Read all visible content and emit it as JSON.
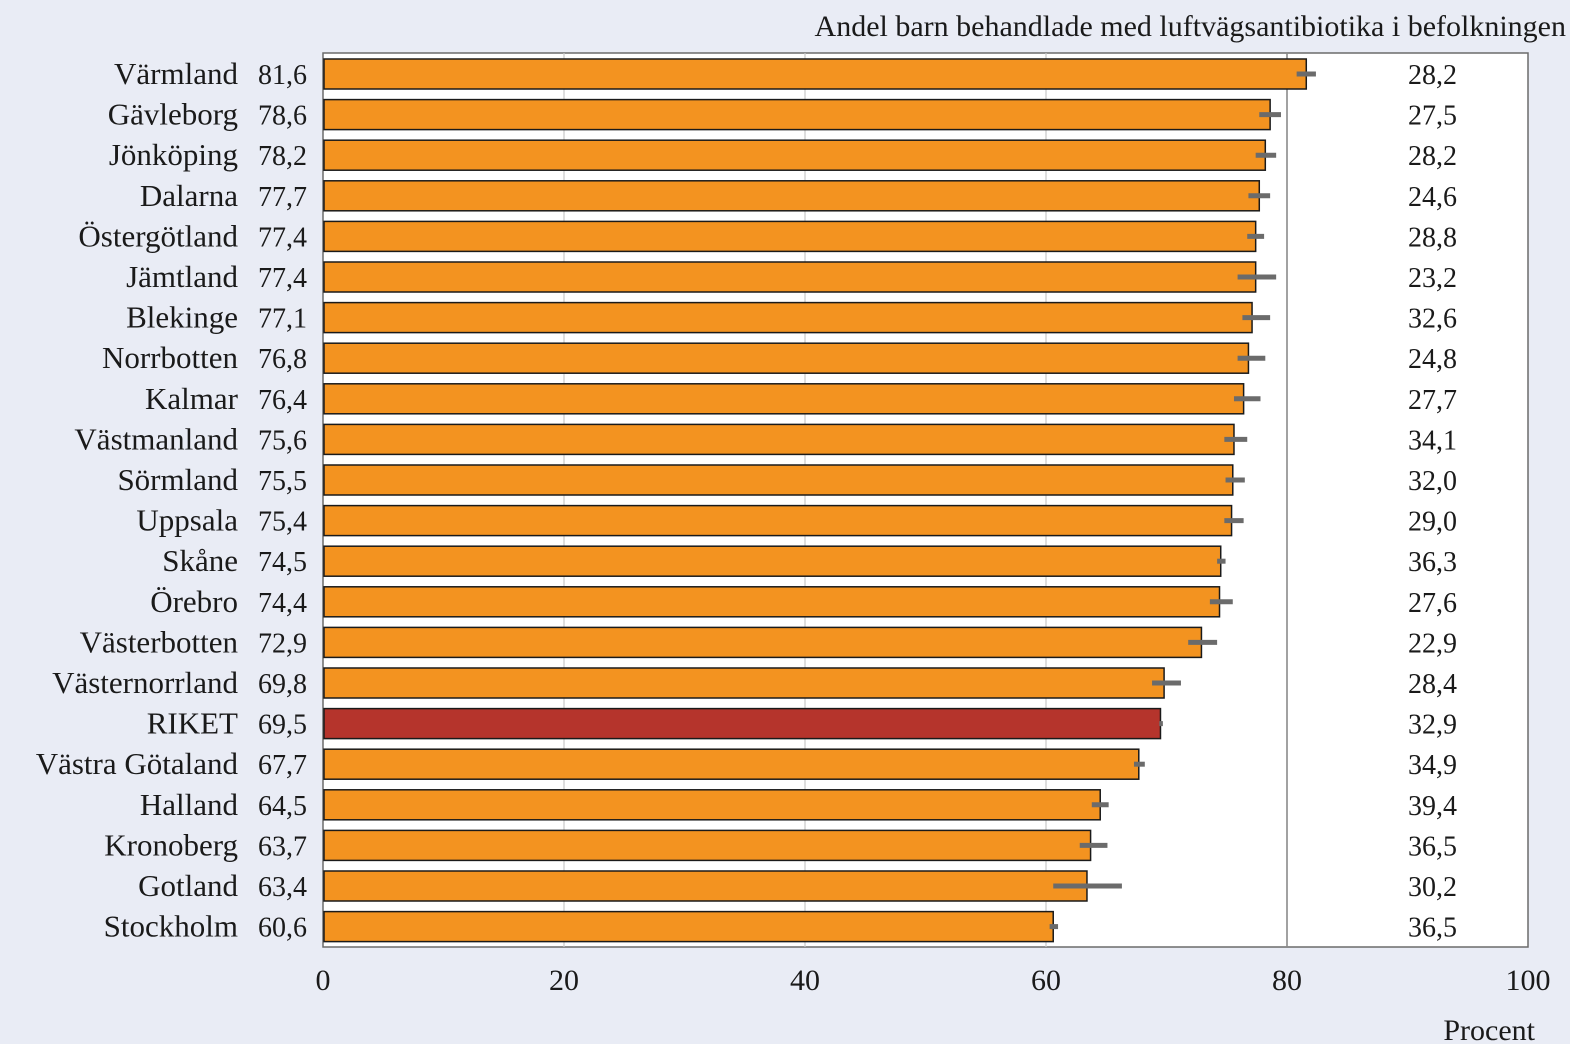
{
  "chart_data": {
    "type": "bar",
    "orientation": "horizontal",
    "title": "Andel barn behandlade med luftvägsantibiotika i befolkningen",
    "xlabel": "Procent",
    "xlim": [
      0,
      100
    ],
    "xticks": [
      0,
      20,
      40,
      60,
      80,
      100
    ],
    "reference_line": 80,
    "grid": true,
    "colors": {
      "bar": "#f39320",
      "highlight": "#b5342c",
      "errorbar": "#6b6b6b",
      "background": "#e9ecf5",
      "plot": "#ffffff"
    },
    "highlight_category": "RIKET",
    "categories": [
      "Värmland",
      "Gävleborg",
      "Jönköping",
      "Dalarna",
      "Östergötland",
      "Jämtland",
      "Blekinge",
      "Norrbotten",
      "Kalmar",
      "Västmanland",
      "Sörmland",
      "Uppsala",
      "Skåne",
      "Örebro",
      "Västerbotten",
      "Västernorrland",
      "RIKET",
      "Västra Götaland",
      "Halland",
      "Kronoberg",
      "Gotland",
      "Stockholm"
    ],
    "value_labels": [
      "81,6",
      "78,6",
      "78,2",
      "77,7",
      "77,4",
      "77,4",
      "77,1",
      "76,8",
      "76,4",
      "75,6",
      "75,5",
      "75,4",
      "74,5",
      "74,4",
      "72,9",
      "69,8",
      "69,5",
      "67,7",
      "64,5",
      "63,7",
      "63,4",
      "60,6"
    ],
    "values": [
      81.6,
      78.6,
      78.2,
      77.7,
      77.4,
      77.4,
      77.1,
      76.8,
      76.4,
      75.6,
      75.5,
      75.4,
      74.5,
      74.4,
      72.9,
      69.8,
      69.5,
      67.7,
      64.5,
      63.7,
      63.4,
      60.6
    ],
    "error_low": [
      80.8,
      77.7,
      77.4,
      76.8,
      76.7,
      75.9,
      76.3,
      75.9,
      75.6,
      74.8,
      74.9,
      74.8,
      74.2,
      73.6,
      71.8,
      68.8,
      69.4,
      67.3,
      63.8,
      62.8,
      60.6,
      60.3
    ],
    "error_high": [
      82.4,
      79.5,
      79.1,
      78.6,
      78.1,
      79.1,
      78.6,
      78.2,
      77.8,
      76.7,
      76.5,
      76.4,
      74.9,
      75.5,
      74.2,
      71.2,
      69.7,
      68.2,
      65.2,
      65.1,
      66.3,
      61.0
    ],
    "right_column": [
      "28,2",
      "27,5",
      "28,2",
      "24,6",
      "28,8",
      "23,2",
      "32,6",
      "24,8",
      "27,7",
      "34,1",
      "32,0",
      "29,0",
      "36,3",
      "27,6",
      "22,9",
      "28,4",
      "32,9",
      "34,9",
      "39,4",
      "36,5",
      "30,2",
      "36,5"
    ]
  }
}
